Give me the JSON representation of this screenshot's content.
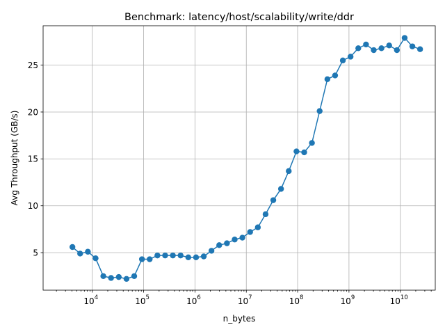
{
  "chart_data": {
    "type": "line",
    "title": "Benchmark: latency/host/scalability/write/ddr",
    "xlabel": "n_bytes",
    "ylabel": "Avg Throughput (GB/s)",
    "xscale": "log",
    "xlim": [
      1100,
      48000000000
    ],
    "ylim": [
      1.0,
      29.2
    ],
    "grid": true,
    "color": "#1f77b4",
    "x_ticks": [
      {
        "value": 10000,
        "base": "10",
        "exp": "4"
      },
      {
        "value": 100000,
        "base": "10",
        "exp": "5"
      },
      {
        "value": 1000000,
        "base": "10",
        "exp": "6"
      },
      {
        "value": 10000000,
        "base": "10",
        "exp": "7"
      },
      {
        "value": 100000000,
        "base": "10",
        "exp": "8"
      },
      {
        "value": 1000000000,
        "base": "10",
        "exp": "9"
      },
      {
        "value": 10000000000,
        "base": "10",
        "exp": "10"
      }
    ],
    "y_ticks": [
      {
        "value": 5,
        "label": "5"
      },
      {
        "value": 10,
        "label": "10"
      },
      {
        "value": 15,
        "label": "15"
      },
      {
        "value": 20,
        "label": "20"
      },
      {
        "value": 25,
        "label": "25"
      }
    ],
    "series": [
      {
        "x": [
          4096,
          5793,
          8192,
          11585,
          16384,
          23170,
          32768,
          46341,
          65536,
          92682,
          131072,
          185364,
          262144,
          370728,
          524288,
          741455,
          1048576,
          1482910,
          2097152,
          2965821,
          4194304,
          5931642,
          8388608,
          11863283,
          16777216,
          23726566,
          33554432,
          47453133,
          67108864,
          94906266,
          134217728,
          189812531,
          268435456,
          379625062,
          536870912,
          759250125,
          1073741824,
          1518500250,
          2147483648,
          3037000500,
          4294967296,
          6074001000,
          8589934592,
          12148002000,
          17179869184,
          24296004000
        ],
        "y": [
          5.6,
          4.9,
          5.1,
          4.4,
          2.5,
          2.3,
          2.4,
          2.2,
          2.5,
          4.3,
          4.3,
          4.7,
          4.7,
          4.7,
          4.7,
          4.5,
          4.5,
          4.6,
          5.2,
          5.8,
          6.0,
          6.4,
          6.6,
          7.2,
          7.7,
          9.1,
          10.6,
          11.8,
          13.7,
          15.8,
          15.7,
          16.7,
          20.1,
          23.5,
          23.9,
          25.5,
          25.9,
          26.8,
          27.2,
          26.6,
          26.8,
          27.1,
          26.6,
          27.9,
          27.0,
          26.7
        ]
      }
    ]
  }
}
